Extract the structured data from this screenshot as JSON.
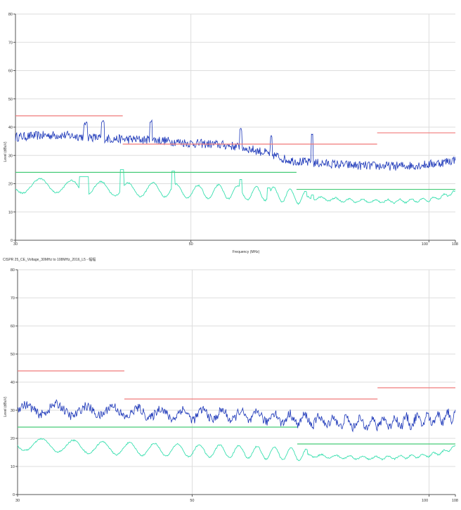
{
  "chart_data": [
    {
      "type": "line",
      "title": "",
      "xlabel": "Frequency (MHz)",
      "ylabel": "Level (dBuV)",
      "x_scale": "log",
      "xlim": [
        30,
        108
      ],
      "ylim": [
        0,
        80
      ],
      "x_ticks": [
        "30",
        "50",
        "100",
        "108"
      ],
      "y_ticks": [
        "0",
        "10",
        "20",
        "30",
        "40",
        "50",
        "60",
        "70",
        "80"
      ],
      "grid": true,
      "colors": {
        "peak": "#1a35b8",
        "average": "#3be0b0",
        "limit_peak": "#f07a7a",
        "limit_avg": "#46cc78",
        "grid": "#dddddd",
        "axis": "#555555"
      },
      "series": [
        {
          "kind": "trace",
          "style": "peak",
          "x": [
            30,
            32,
            34,
            36,
            38,
            40,
            42,
            45,
            48,
            50,
            53,
            56,
            60,
            63,
            66,
            70,
            75,
            80,
            85,
            90,
            95,
            100,
            104,
            108
          ],
          "y": [
            36.5,
            37.0,
            37.2,
            36.8,
            36.3,
            35.8,
            35.7,
            35.5,
            34.8,
            34.3,
            34.0,
            33.5,
            32.0,
            30.5,
            28.5,
            27.5,
            27.0,
            26.5,
            26.3,
            26.2,
            26.4,
            26.8,
            27.5,
            28.5
          ],
          "spikes": [
            [
              36.8,
              42
            ],
            [
              38.7,
              43
            ],
            [
              44.5,
              42.5
            ],
            [
              57.8,
              40
            ],
            [
              63.2,
              38
            ],
            [
              71.2,
              38
            ]
          ]
        },
        {
          "kind": "trace",
          "style": "average",
          "x": [
            30,
            33,
            36,
            39,
            42,
            45,
            48,
            51,
            54,
            57,
            60,
            63,
            66,
            70,
            75,
            80,
            85,
            90,
            95,
            100,
            104,
            108
          ],
          "y": [
            19.0,
            19.5,
            18.5,
            18.3,
            17.8,
            18.0,
            17.5,
            17.0,
            17.2,
            17.0,
            16.5,
            16.5,
            15.8,
            15.0,
            14.5,
            14.0,
            13.8,
            13.8,
            14.0,
            14.3,
            15.5,
            17.0
          ],
          "ripple": 2.4,
          "steps": [
            [
              36.4,
              22.5
            ],
            [
              36.9,
              22.5
            ],
            [
              40.9,
              25
            ],
            [
              47.5,
              24.5
            ],
            [
              57.8,
              21.5
            ],
            [
              62.7,
              18.5
            ],
            [
              71.2,
              16
            ]
          ]
        },
        {
          "kind": "limit",
          "style": "limit_peak",
          "segments": [
            [
              30,
              41,
              44
            ],
            [
              41,
              86,
              34
            ],
            [
              86,
              108,
              38
            ]
          ]
        },
        {
          "kind": "limit",
          "style": "limit_avg",
          "segments": [
            [
              30,
              68,
              24
            ],
            [
              68,
              108,
              18
            ]
          ]
        }
      ]
    },
    {
      "type": "line",
      "title": "CISPR 25_CE_Voltage_30MHz to 108MHz_2016_L5 - 幅幅",
      "xlabel": "",
      "ylabel": "Level (dBuV)",
      "x_scale": "log",
      "xlim": [
        30,
        108
      ],
      "ylim": [
        0,
        80
      ],
      "x_ticks": [
        "30",
        "50",
        "100",
        "108"
      ],
      "y_ticks": [
        "0",
        "10",
        "20",
        "30",
        "40",
        "50",
        "60",
        "70",
        "80"
      ],
      "grid": true,
      "colors": {
        "peak": "#1a35b8",
        "average": "#3be0b0",
        "limit_peak": "#f07a7a",
        "limit_avg": "#46cc78",
        "grid": "#dddddd",
        "axis": "#555555"
      },
      "series": [
        {
          "kind": "trace",
          "style": "peak",
          "x": [
            30,
            33,
            36,
            39,
            42,
            45,
            48,
            51,
            54,
            57,
            60,
            63,
            66,
            70,
            75,
            80,
            85,
            90,
            95,
            100,
            104,
            108
          ],
          "y": [
            30.0,
            30.5,
            29.5,
            30.0,
            29.0,
            29.0,
            28.5,
            28.5,
            28.3,
            28.0,
            27.8,
            27.5,
            27.0,
            26.5,
            26.0,
            25.5,
            25.5,
            25.8,
            26.0,
            26.8,
            27.5,
            28.5
          ],
          "ripple": 3.0,
          "spikes": []
        },
        {
          "kind": "trace",
          "style": "average",
          "x": [
            30,
            33,
            36,
            39,
            42,
            45,
            48,
            51,
            54,
            57,
            60,
            63,
            66,
            70,
            75,
            80,
            85,
            90,
            95,
            100,
            104,
            108
          ],
          "y": [
            18.0,
            17.5,
            17.0,
            16.5,
            16.2,
            16.0,
            15.8,
            15.5,
            15.5,
            15.3,
            15.0,
            14.8,
            14.5,
            14.0,
            13.5,
            13.2,
            13.0,
            13.2,
            13.5,
            14.0,
            15.0,
            17.0
          ],
          "ripple": 2.2,
          "steps": []
        },
        {
          "kind": "limit",
          "style": "limit_peak",
          "segments": [
            [
              30,
              41,
              44
            ],
            [
              41,
              86,
              34
            ],
            [
              86,
              108,
              38
            ]
          ]
        },
        {
          "kind": "limit",
          "style": "limit_avg",
          "segments": [
            [
              30,
              68,
              24
            ],
            [
              68,
              108,
              18
            ]
          ]
        }
      ]
    }
  ]
}
